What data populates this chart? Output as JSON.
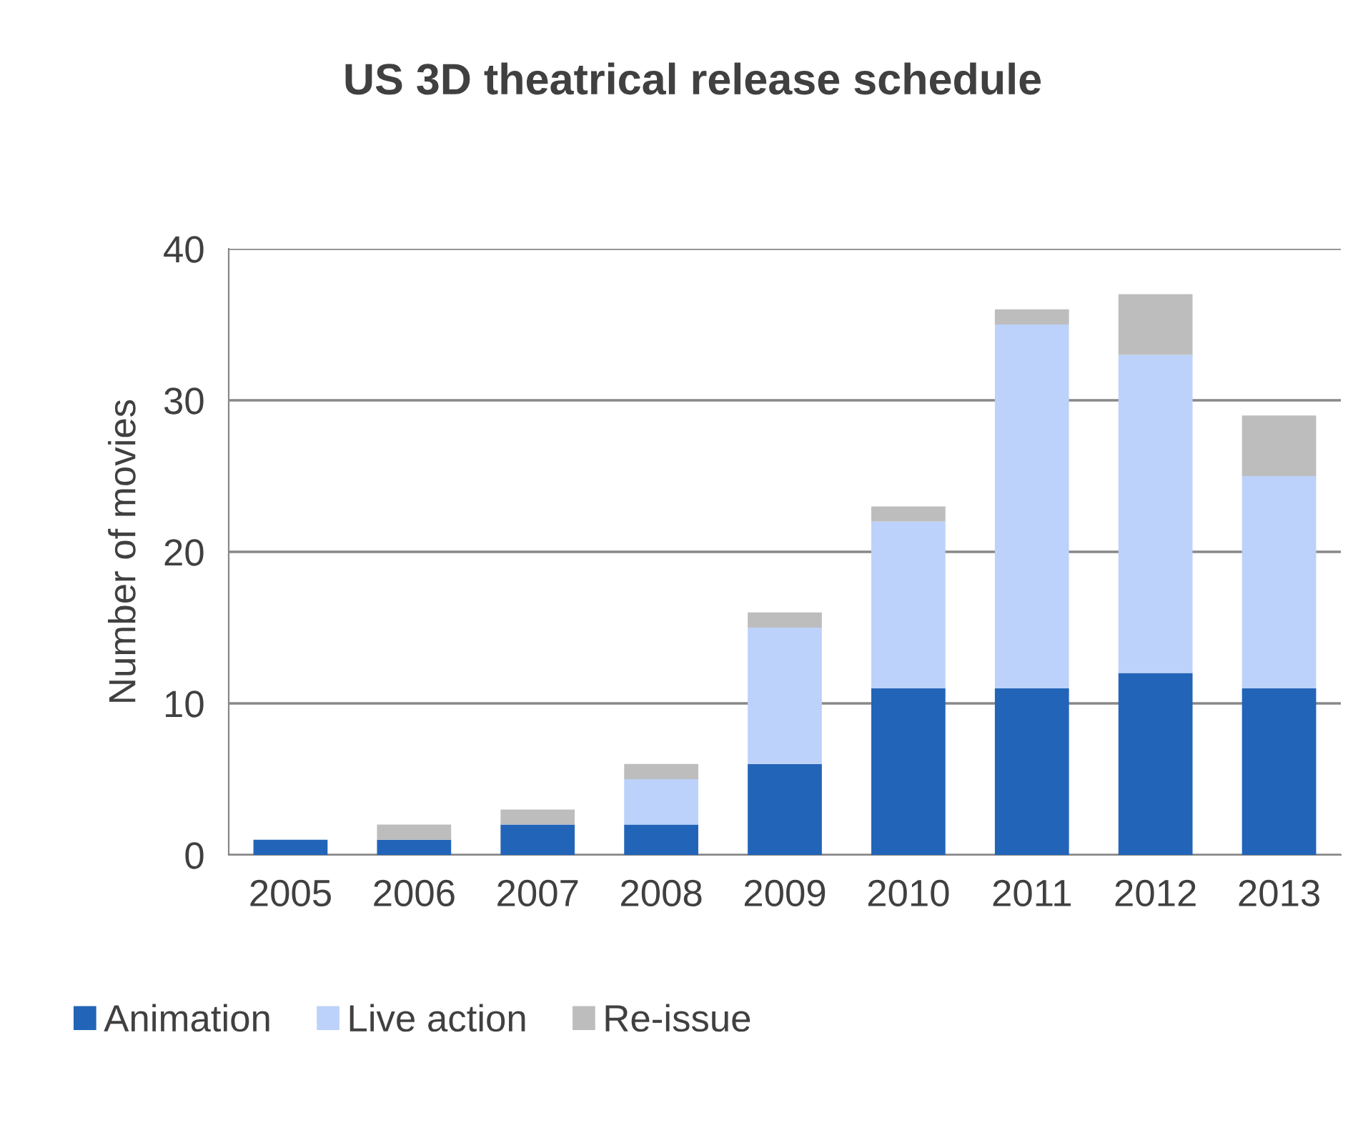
{
  "chart_data": {
    "type": "bar",
    "title": "US 3D theatrical release schedule",
    "ylabel": "Number of movies",
    "stacked": true,
    "categories": [
      "2005",
      "2006",
      "2007",
      "2008",
      "2009",
      "2010",
      "2011",
      "2012",
      "2013"
    ],
    "series": [
      {
        "name": "Animation",
        "color": "#2264b8",
        "values": [
          1,
          1,
          2,
          2,
          6,
          11,
          11,
          12,
          11
        ]
      },
      {
        "name": "Live action",
        "color": "#bcd2fa",
        "values": [
          0,
          0,
          0,
          3,
          9,
          11,
          24,
          21,
          14
        ]
      },
      {
        "name": "Re-issue",
        "color": "#bdbdbd",
        "values": [
          0,
          1,
          1,
          1,
          1,
          1,
          1,
          4,
          4
        ]
      }
    ],
    "ylim": [
      0,
      40
    ],
    "yticks": [
      0,
      10,
      20,
      30,
      40
    ],
    "grid": "y",
    "legend": "bottom left"
  }
}
